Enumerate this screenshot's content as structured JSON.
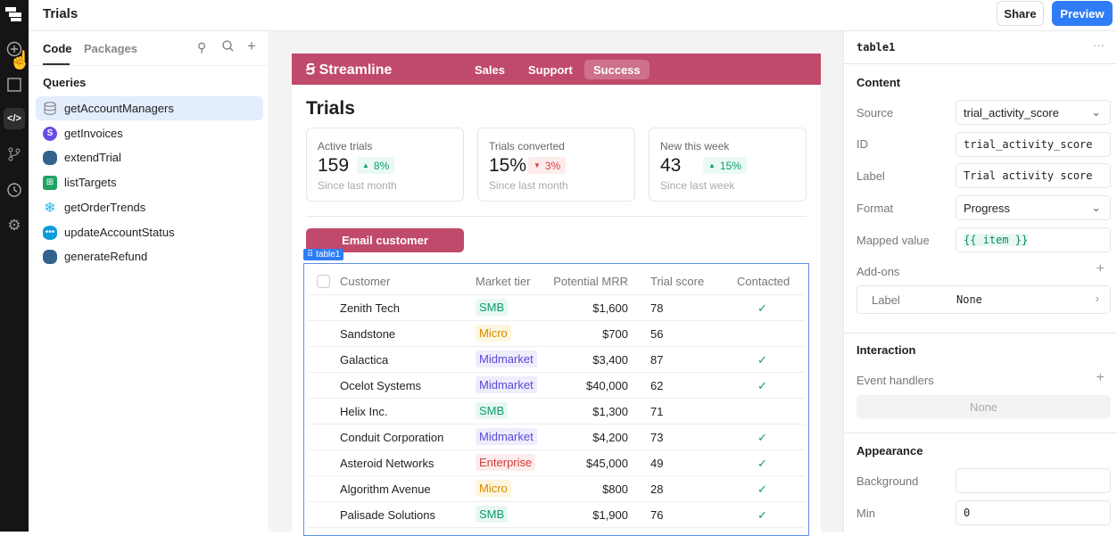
{
  "header": {
    "title": "Trials",
    "share_label": "Share",
    "preview_label": "Preview"
  },
  "sidebar": {
    "tabs": [
      "Code",
      "Packages"
    ],
    "section": "Queries",
    "queries": [
      {
        "name": "getAccountManagers",
        "icon": "database-icon"
      },
      {
        "name": "getInvoices",
        "icon": "stripe-icon"
      },
      {
        "name": "extendTrial",
        "icon": "postgres-icon"
      },
      {
        "name": "listTargets",
        "icon": "sheets-icon"
      },
      {
        "name": "getOrderTrends",
        "icon": "snowflake-icon"
      },
      {
        "name": "updateAccountStatus",
        "icon": "salesforce-icon"
      },
      {
        "name": "generateRefund",
        "icon": "postgres-icon"
      }
    ]
  },
  "app": {
    "brand": "Streamline",
    "nav": [
      "Sales",
      "Support",
      "Success"
    ],
    "page_title": "Trials",
    "stats": [
      {
        "label": "Active trials",
        "value": "159",
        "delta": "8%",
        "dir": "up",
        "sub": "Since last month"
      },
      {
        "label": "Trials converted",
        "value": "15%",
        "delta": "3%",
        "dir": "down",
        "sub": "Since last month"
      },
      {
        "label": "New this week",
        "value": "43",
        "delta": "15%",
        "dir": "up",
        "sub": "Since last week"
      }
    ],
    "email_button": "Email customer",
    "table_tag": "table1",
    "table": {
      "columns": [
        "Customer",
        "Market tier",
        "Potential MRR",
        "Trial score",
        "Contacted"
      ],
      "rows": [
        [
          "Zenith Tech",
          "SMB",
          "$1,600",
          "78",
          true
        ],
        [
          "Sandstone",
          "Micro",
          "$700",
          "56",
          false
        ],
        [
          "Galactica",
          "Midmarket",
          "$3,400",
          "87",
          true
        ],
        [
          "Ocelot Systems",
          "Midmarket",
          "$40,000",
          "62",
          true
        ],
        [
          "Helix Inc.",
          "SMB",
          "$1,300",
          "71",
          false
        ],
        [
          "Conduit Corporation",
          "Midmarket",
          "$4,200",
          "73",
          true
        ],
        [
          "Asteroid Networks",
          "Enterprise",
          "$45,000",
          "49",
          true
        ],
        [
          "Algorithm Avenue",
          "Micro",
          "$800",
          "28",
          true
        ],
        [
          "Palisade Solutions",
          "SMB",
          "$1,900",
          "76",
          true
        ]
      ]
    }
  },
  "inspector": {
    "title": "table1",
    "content": "Content",
    "source_label": "Source",
    "source": "trial_activity_score",
    "id_label": "ID",
    "id": "trial_activity_score",
    "label_label": "Label",
    "label": "Trial activity score",
    "format_label": "Format",
    "format": "Progress",
    "mapped_label": "Mapped value",
    "mapped": "{{ item }}",
    "addons": "Add-ons",
    "addon_label": "Label",
    "addon_value": "None",
    "interaction": "Interaction",
    "event_handlers": "Event handlers",
    "event_none": "None",
    "appearance": "Appearance",
    "background_label": "Background",
    "min_label": "Min",
    "min": "0"
  }
}
